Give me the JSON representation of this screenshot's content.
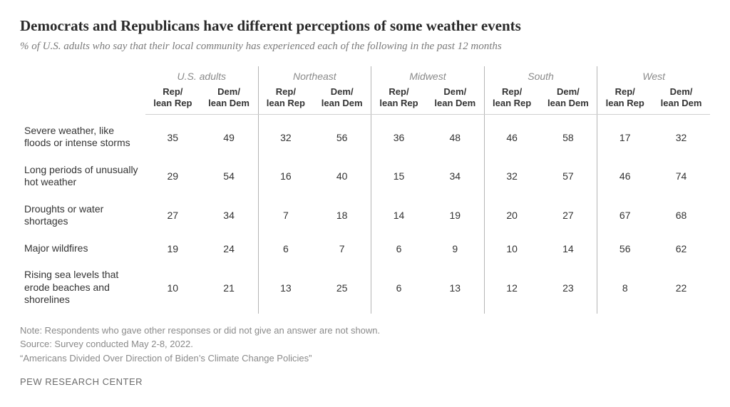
{
  "title": "Democrats and Republicans have different perceptions of some weather events",
  "subtitle": "% of U.S. adults who say that their local community has experienced each of the following in the past 12 months",
  "groups": [
    "U.S. adults",
    "Northeast",
    "Midwest",
    "South",
    "West"
  ],
  "subheads": {
    "rep": "Rep/\nlean Rep",
    "dem": "Dem/\nlean Dem"
  },
  "rows": [
    {
      "label": "Severe weather, like floods or intense storms",
      "vals": [
        35,
        49,
        32,
        56,
        36,
        48,
        46,
        58,
        17,
        32
      ]
    },
    {
      "label": "Long periods of unusually hot weather",
      "vals": [
        29,
        54,
        16,
        40,
        15,
        34,
        32,
        57,
        46,
        74
      ]
    },
    {
      "label": "Droughts or water shortages",
      "vals": [
        27,
        34,
        7,
        18,
        14,
        19,
        20,
        27,
        67,
        68
      ]
    },
    {
      "label": "Major wildfires",
      "vals": [
        19,
        24,
        6,
        7,
        6,
        9,
        10,
        14,
        56,
        62
      ]
    },
    {
      "label": "Rising sea levels that erode beaches and shorelines",
      "vals": [
        10,
        21,
        13,
        25,
        6,
        13,
        12,
        23,
        8,
        22
      ]
    }
  ],
  "note": "Note: Respondents who gave other responses or did not give an answer are not shown.",
  "source": "Source: Survey conducted May 2-8, 2022.",
  "quote": "“Americans Divided Over Direction of Biden’s Climate Change Policies”",
  "attribution": "PEW RESEARCH CENTER",
  "style": {
    "title_color": "#2a2a2a",
    "subtitle_color": "#7a7a7a",
    "text_color": "#333333",
    "note_color": "#8a8a8a",
    "divider_color": "#b5b5b5",
    "header_rule_color": "#d0d0d0",
    "background": "#ffffff",
    "title_fontsize": 21,
    "subtitle_fontsize": 15,
    "body_fontsize": 14,
    "note_fontsize": 13
  }
}
